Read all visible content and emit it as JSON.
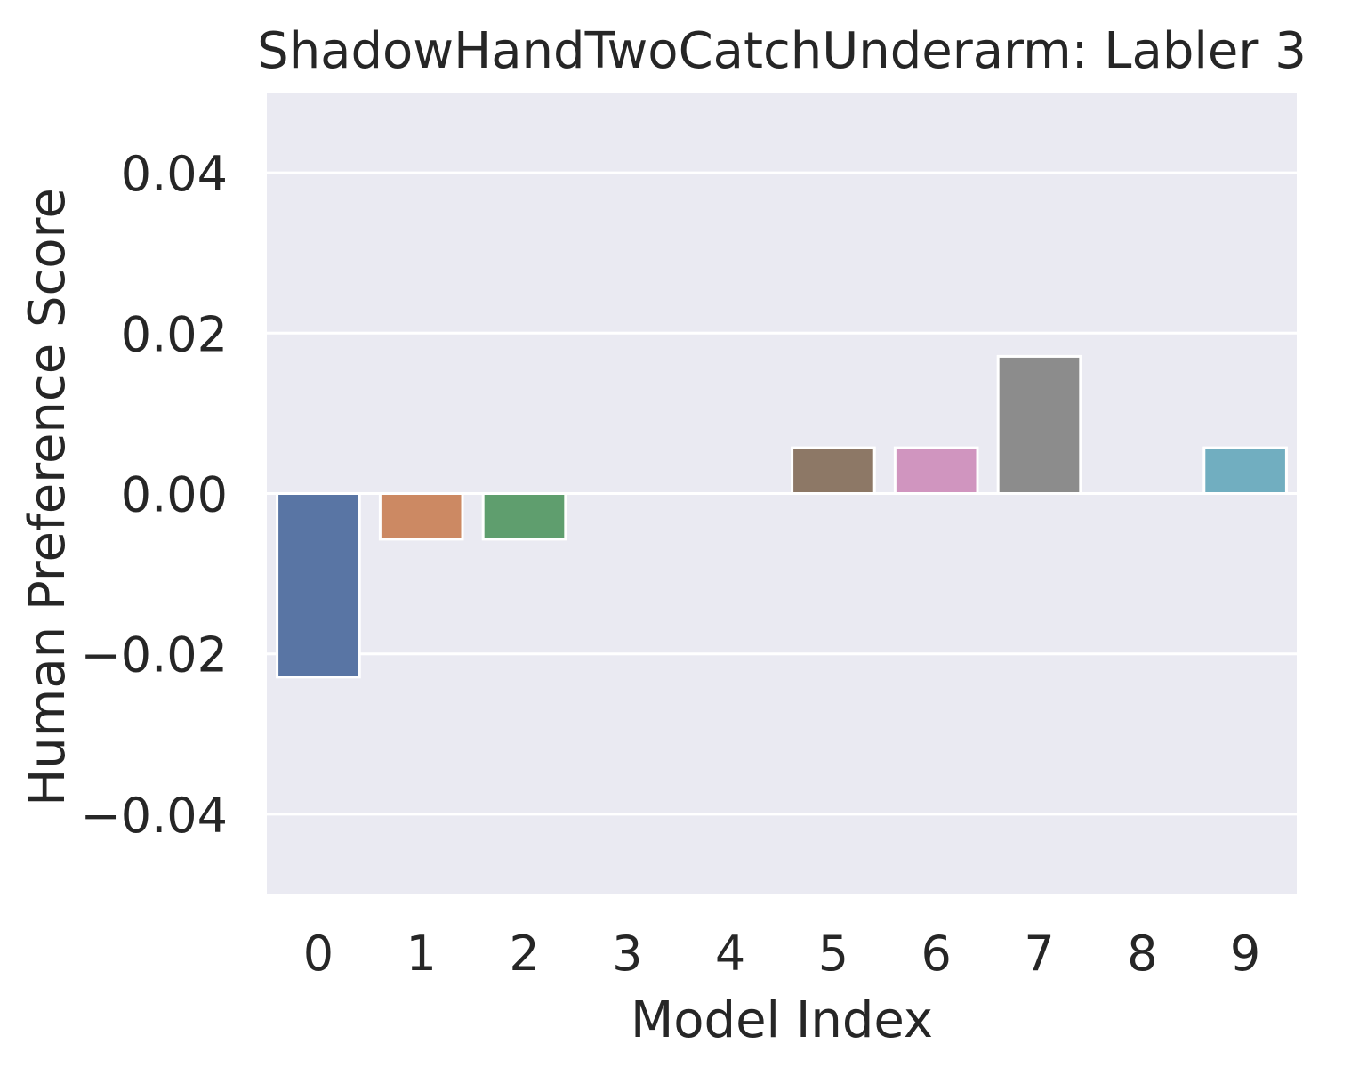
{
  "chart_data": {
    "type": "bar",
    "title": "ShadowHandTwoCatchUnderarm: Labler 3",
    "xlabel": "Model Index",
    "ylabel": "Human Preference Score",
    "categories": [
      "0",
      "1",
      "2",
      "3",
      "4",
      "5",
      "6",
      "7",
      "8",
      "9"
    ],
    "values": [
      -0.0229,
      -0.0057,
      -0.0057,
      0.0,
      0.0,
      0.0057,
      0.0057,
      0.0171,
      0.0,
      0.0057
    ],
    "colors": [
      "#5975a4",
      "#cc8963",
      "#5f9e6e",
      "#b55d60",
      "#857aab",
      "#8d7866",
      "#d095bf",
      "#8c8c8c",
      "#c1b37f",
      "#71aec0"
    ],
    "ylim": [
      -0.05,
      0.05
    ],
    "yticks": [
      -0.04,
      -0.02,
      0.0,
      0.02,
      0.04
    ],
    "ytick_labels": [
      "−0.04",
      "−0.02",
      "0.00",
      "0.02",
      "0.04"
    ],
    "grid": true,
    "background": "#eaeaf2",
    "grid_color": "#ffffff"
  }
}
